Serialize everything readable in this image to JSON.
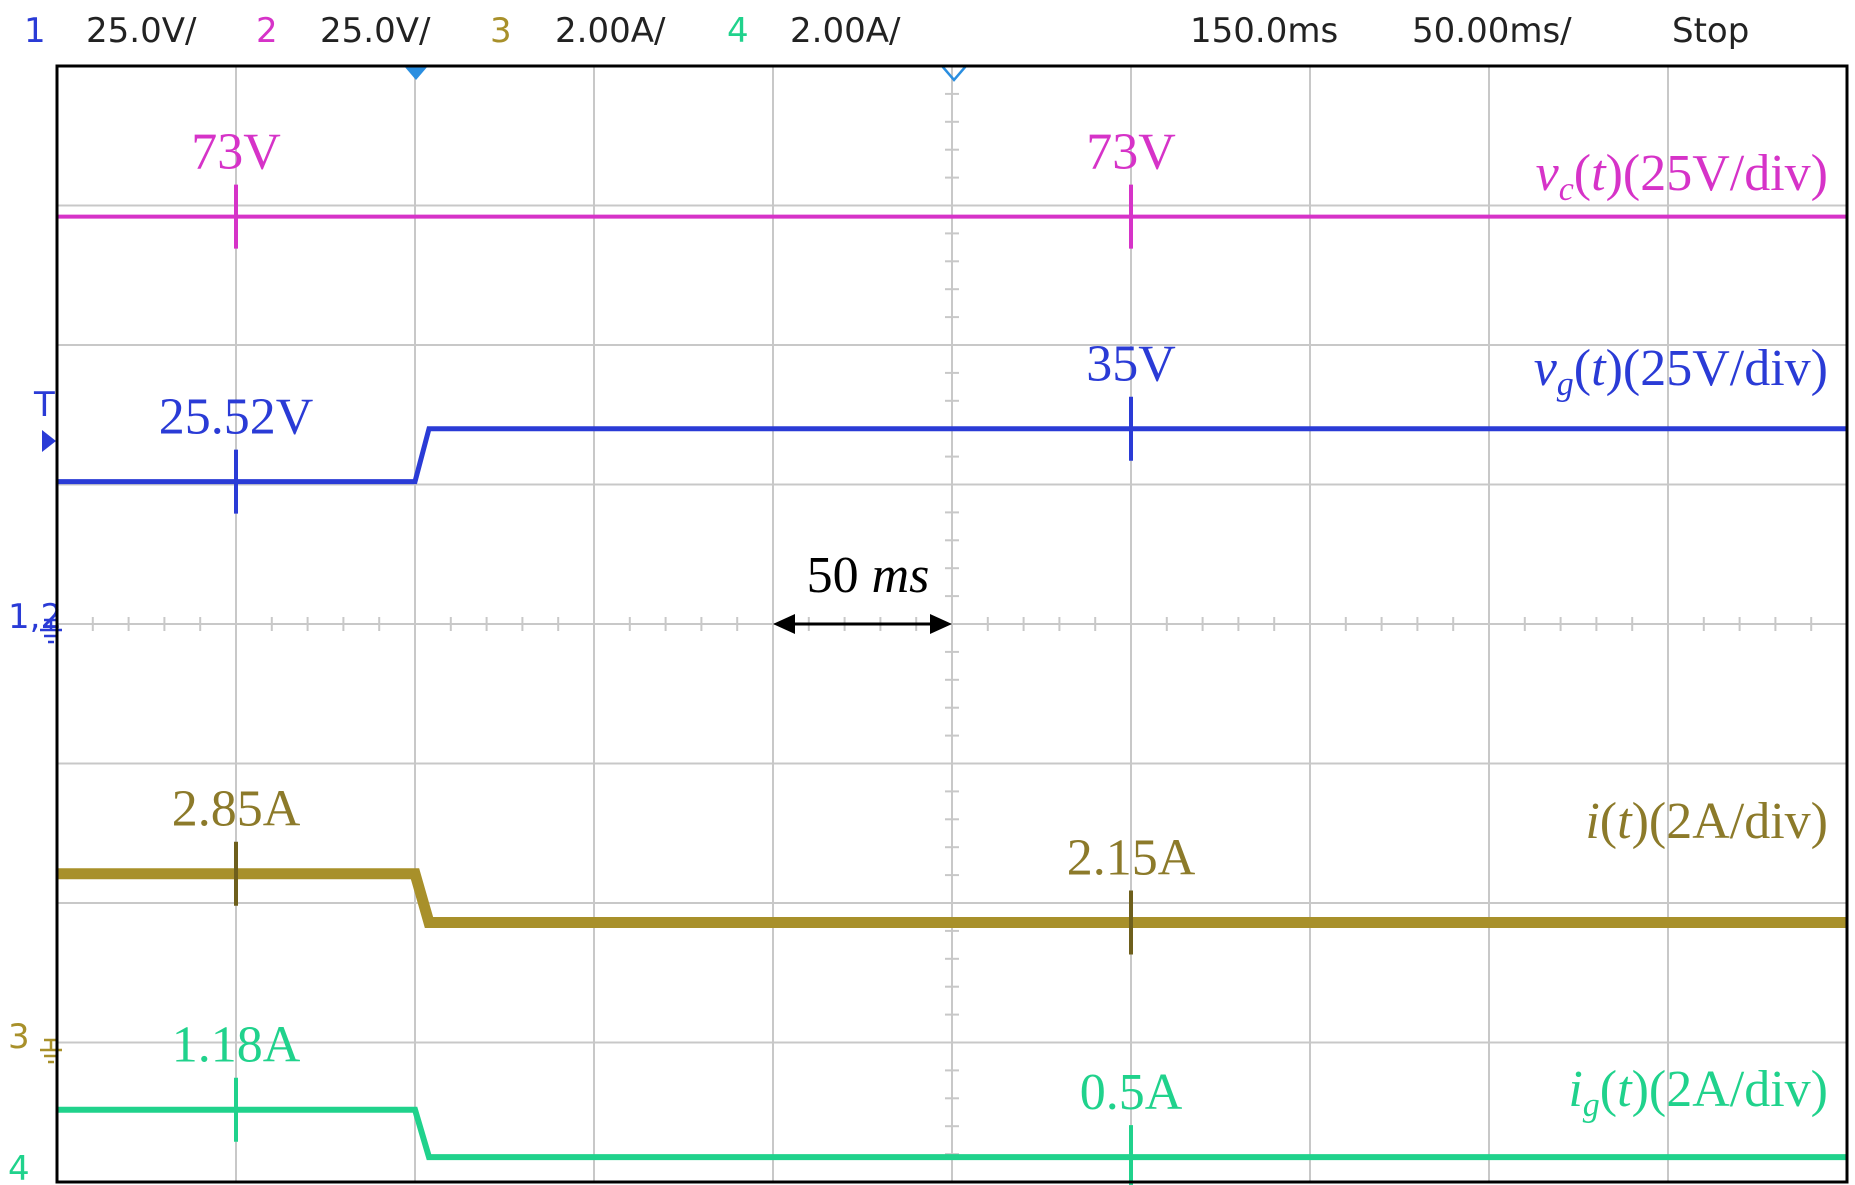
{
  "header": {
    "channels": [
      {
        "num": "1",
        "scale": "25.0V/",
        "color": "#2a3bd6"
      },
      {
        "num": "2",
        "scale": "25.0V/",
        "color": "#d633c8"
      },
      {
        "num": "3",
        "scale": "2.00A/",
        "color": "#a8902a"
      },
      {
        "num": "4",
        "scale": "2.00A/",
        "color": "#20d28c"
      }
    ],
    "trigger_pos": "150.0ms",
    "timebase": "50.00ms/",
    "status": "Stop"
  },
  "markers": {
    "trigger": "T",
    "ch_ground_12": "1,2",
    "ch_ground_3": "3",
    "ch_ground_4": "4"
  },
  "colors": {
    "vc": "#d633c8",
    "vg": "#2a3bd6",
    "i": "#a8902a",
    "ig": "#20d28c",
    "grid": "#c8c8c8",
    "frame": "#000000"
  },
  "chart_data": {
    "type": "line",
    "x_unit": "ms",
    "x_range": [
      0,
      500
    ],
    "series": [
      {
        "key": "vc",
        "label_main": "v",
        "label_sub": "c",
        "label_rest": "(25V/div)",
        "unit": "V",
        "before": 73,
        "after": 73,
        "step_ms": 100
      },
      {
        "key": "vg",
        "label_main": "v",
        "label_sub": "g",
        "label_rest": "(25V/div)",
        "unit": "V",
        "before": 25.52,
        "after": 35,
        "step_ms": 100
      },
      {
        "key": "i",
        "label_main": "i",
        "label_sub": "",
        "label_rest": "(2A/div)",
        "unit": "A",
        "before": 2.85,
        "after": 2.15,
        "step_ms": 100
      },
      {
        "key": "ig",
        "label_main": "i",
        "label_sub": "g",
        "label_rest": "(2A/div)",
        "unit": "A",
        "before": 1.18,
        "after": 0.5,
        "step_ms": 100
      }
    ],
    "annotations": [
      {
        "series": "vc",
        "at_ms": 50,
        "text": "73V"
      },
      {
        "series": "vc",
        "at_ms": 300,
        "text": "73V"
      },
      {
        "series": "vg",
        "at_ms": 50,
        "text": "25.52V"
      },
      {
        "series": "vg",
        "at_ms": 300,
        "text": "35V"
      },
      {
        "series": "i",
        "at_ms": 50,
        "text": "2.85A"
      },
      {
        "series": "i",
        "at_ms": 300,
        "text": "2.15A"
      },
      {
        "series": "ig",
        "at_ms": 50,
        "text": "1.18A"
      },
      {
        "series": "ig",
        "at_ms": 300,
        "text": "0.5A"
      }
    ],
    "time_scale": {
      "label_num": "50",
      "label_unit": "ms",
      "from_ms": 200,
      "to_ms": 250
    }
  }
}
